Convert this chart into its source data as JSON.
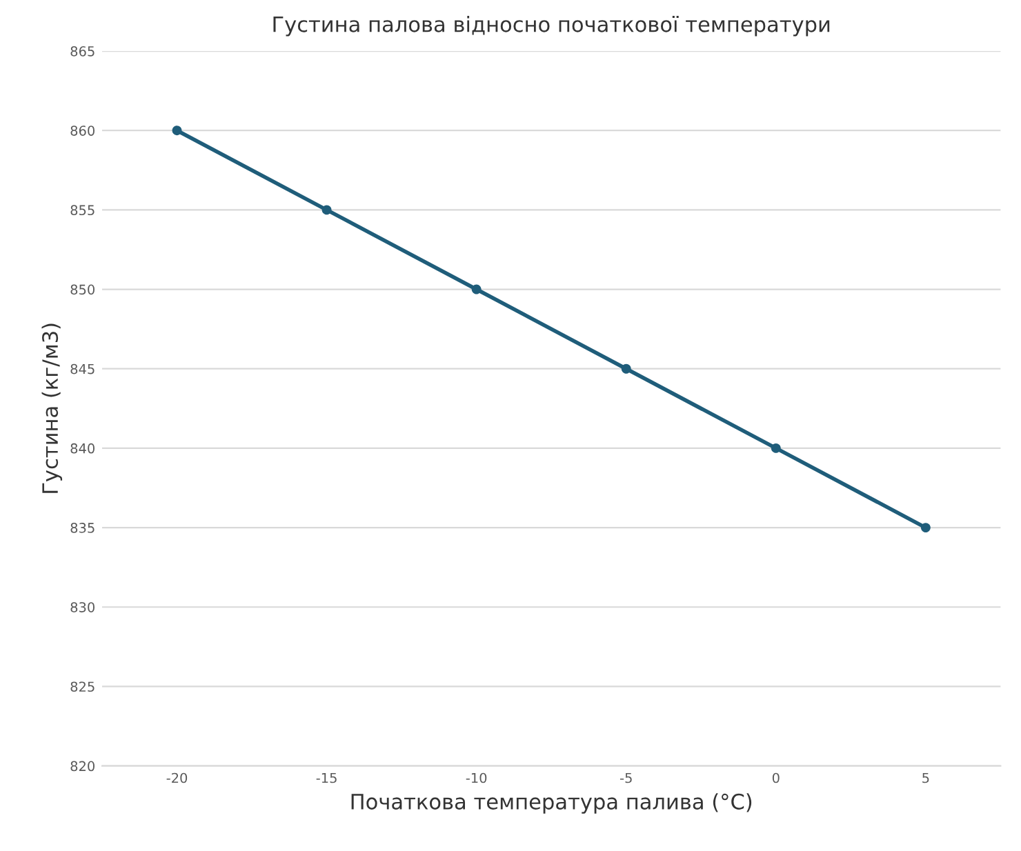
{
  "chart_data": {
    "type": "line",
    "title": "Густина палова відносно початкової температури",
    "xlabel": "Початкова температура палива (°C)",
    "ylabel": "Густина (кг/м3)",
    "categories": [
      "-20",
      "-15",
      "-10",
      "-5",
      "0",
      "5"
    ],
    "series": [
      {
        "color": "#1f5d7a",
        "values": [
          860,
          855,
          850,
          845,
          840,
          835
        ]
      }
    ],
    "ylim": [
      820,
      865
    ],
    "yticks": [
      820,
      825,
      830,
      835,
      840,
      845,
      850,
      855,
      860,
      865
    ],
    "grid": "y",
    "marker": "circle",
    "line_style": "solid",
    "legend": false
  }
}
